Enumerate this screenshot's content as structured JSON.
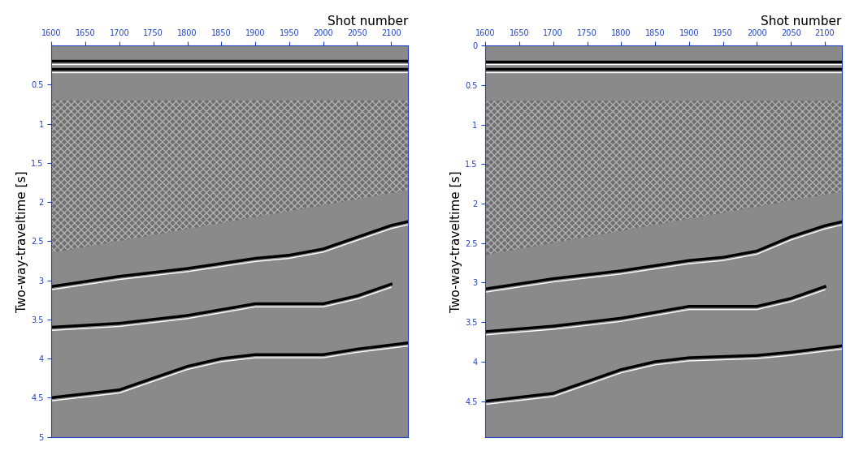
{
  "chart_data": [
    {
      "type": "seismic_section",
      "x_label": "Shot number",
      "y_label": "Two-way-traveltime [s]",
      "xlim": [
        1600,
        2125
      ],
      "ylim": [
        5,
        0
      ],
      "xticks": [
        1600,
        1650,
        1700,
        1750,
        1800,
        1850,
        1900,
        1950,
        2000,
        2050,
        2100
      ],
      "yticks": [
        0.5,
        1,
        1.5,
        2,
        2.5,
        3,
        3.5,
        4,
        4.5,
        5
      ],
      "noise_zone": {
        "x": [
          1600,
          2125
        ],
        "top": [
          0.7,
          0.7
        ],
        "bottom": [
          2.65,
          1.85
        ]
      },
      "reflectors": [
        {
          "x": [
            1600,
            2125
          ],
          "y": [
            0.2,
            0.2
          ]
        },
        {
          "x": [
            1600,
            2125
          ],
          "y": [
            0.3,
            0.3
          ]
        },
        {
          "x": [
            1600,
            1700,
            1800,
            1900,
            1950,
            2000,
            2050,
            2100,
            2125
          ],
          "y": [
            3.08,
            2.95,
            2.85,
            2.72,
            2.68,
            2.6,
            2.45,
            2.3,
            2.25
          ]
        },
        {
          "x": [
            1600,
            1700,
            1800,
            1900,
            1950,
            2000,
            2050,
            2100
          ],
          "y": [
            3.6,
            3.55,
            3.45,
            3.3,
            3.3,
            3.3,
            3.2,
            3.05
          ]
        },
        {
          "x": [
            1600,
            1650,
            1700,
            1750,
            1800,
            1850,
            1900,
            2000,
            2050,
            2125
          ],
          "y": [
            4.5,
            4.45,
            4.4,
            4.25,
            4.1,
            4.0,
            3.95,
            3.95,
            3.88,
            3.8
          ]
        }
      ]
    },
    {
      "type": "seismic_section",
      "x_label": "Shot number",
      "y_label": "Two-way-traveltime [s]",
      "xlim": [
        1600,
        2125
      ],
      "ylim": [
        4.95,
        0
      ],
      "xticks": [
        1600,
        1650,
        1700,
        1750,
        1800,
        1850,
        1900,
        1950,
        2000,
        2050,
        2100
      ],
      "yticks": [
        0,
        0.5,
        1,
        1.5,
        2,
        2.5,
        3,
        3.5,
        4,
        4.5
      ],
      "noise_zone": {
        "x": [
          1600,
          2125
        ],
        "top": [
          0.7,
          0.7
        ],
        "bottom": [
          2.65,
          1.85
        ]
      },
      "reflectors": [
        {
          "x": [
            1600,
            2125
          ],
          "y": [
            0.2,
            0.2
          ]
        },
        {
          "x": [
            1600,
            2125
          ],
          "y": [
            0.3,
            0.3
          ]
        },
        {
          "x": [
            1600,
            1700,
            1800,
            1900,
            1950,
            2000,
            2050,
            2100,
            2125
          ],
          "y": [
            3.08,
            2.95,
            2.85,
            2.72,
            2.68,
            2.6,
            2.42,
            2.28,
            2.23
          ]
        },
        {
          "x": [
            1600,
            1700,
            1800,
            1900,
            1950,
            2000,
            2050,
            2100
          ],
          "y": [
            3.62,
            3.55,
            3.45,
            3.3,
            3.3,
            3.3,
            3.2,
            3.05
          ]
        },
        {
          "x": [
            1600,
            1650,
            1700,
            1750,
            1800,
            1850,
            1900,
            2000,
            2050,
            2125
          ],
          "y": [
            4.5,
            4.45,
            4.4,
            4.25,
            4.1,
            4.0,
            3.95,
            3.92,
            3.88,
            3.8
          ]
        }
      ]
    }
  ]
}
